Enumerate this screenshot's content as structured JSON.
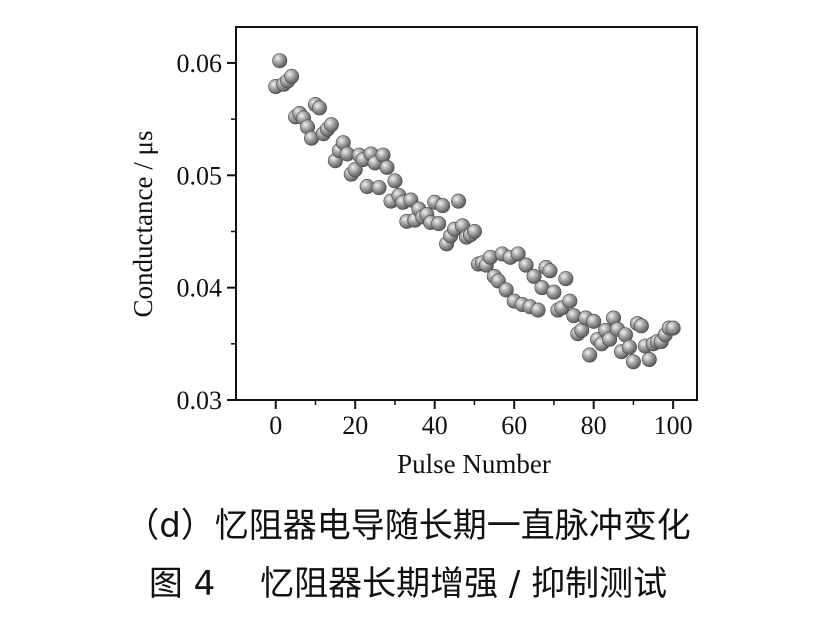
{
  "chart_data": {
    "type": "scatter",
    "xlabel": "Pulse Number",
    "ylabel": "Conductance / μs",
    "xlim": [
      -10,
      106
    ],
    "ylim": [
      0.03,
      0.0632
    ],
    "xticks": [
      0,
      20,
      40,
      60,
      80,
      100
    ],
    "xtick_labels": [
      "0",
      "20",
      "40",
      "60",
      "80",
      "100"
    ],
    "yticks": [
      0.03,
      0.04,
      0.05,
      0.06
    ],
    "ytick_labels": [
      "0.03",
      "0.04",
      "0.05",
      "0.06"
    ],
    "grid": false,
    "marker": "sphere",
    "color": "#8a8a8a",
    "series": [
      {
        "x": [
          0,
          1,
          2,
          3,
          4,
          5,
          6,
          7,
          8,
          9,
          10,
          11,
          12,
          13,
          14,
          15,
          16,
          17,
          18,
          19,
          20,
          21,
          22,
          23,
          24,
          25,
          26,
          27,
          28,
          29,
          30,
          31,
          32,
          33,
          34,
          35,
          36,
          37,
          38,
          39,
          40,
          41,
          42,
          43,
          44,
          45,
          46,
          47,
          48,
          49,
          50,
          51,
          52,
          53,
          54,
          55,
          56,
          57,
          58,
          59,
          60,
          61,
          62,
          63,
          64,
          65,
          66,
          67,
          68,
          69,
          70,
          71,
          72,
          73,
          74,
          75,
          76,
          77,
          78,
          79,
          80,
          81,
          82,
          83,
          84,
          85,
          86,
          87,
          88,
          89,
          90,
          91,
          92,
          93,
          94,
          95,
          96,
          97,
          98,
          99,
          100
        ],
        "y": [
          0.0579,
          0.0602,
          0.0581,
          0.0584,
          0.0588,
          0.0552,
          0.0555,
          0.0551,
          0.0543,
          0.0533,
          0.0563,
          0.056,
          0.0537,
          0.0541,
          0.0545,
          0.0513,
          0.0522,
          0.0529,
          0.0519,
          0.0501,
          0.0505,
          0.0518,
          0.0514,
          0.049,
          0.0519,
          0.0511,
          0.0489,
          0.0518,
          0.0507,
          0.0477,
          0.0495,
          0.0482,
          0.0476,
          0.0459,
          0.0478,
          0.046,
          0.047,
          0.0463,
          0.0465,
          0.0458,
          0.0476,
          0.0457,
          0.0473,
          0.0439,
          0.0446,
          0.0452,
          0.0477,
          0.0455,
          0.0445,
          0.0447,
          0.045,
          0.0421,
          0.0422,
          0.042,
          0.0427,
          0.041,
          0.0406,
          0.043,
          0.0398,
          0.0427,
          0.0388,
          0.043,
          0.0385,
          0.042,
          0.0383,
          0.041,
          0.038,
          0.04,
          0.0418,
          0.0415,
          0.0396,
          0.038,
          0.0382,
          0.0408,
          0.0388,
          0.0375,
          0.0359,
          0.0362,
          0.0373,
          0.034,
          0.037,
          0.0354,
          0.035,
          0.0362,
          0.0354,
          0.0373,
          0.0363,
          0.0343,
          0.0358,
          0.0347,
          0.0334,
          0.0368,
          0.0366,
          0.0348,
          0.0336,
          0.035,
          0.0352,
          0.0352,
          0.0358,
          0.0364,
          0.0364
        ]
      }
    ]
  },
  "captions": {
    "sub": "（d）忆阻器电导随长期一直脉冲变化",
    "fig": "图 4　 忆阻器长期增强 / 抑制测试"
  }
}
